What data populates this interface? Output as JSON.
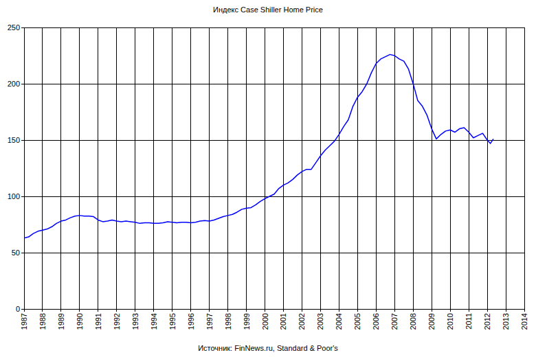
{
  "chart_data": {
    "type": "line",
    "title": "Индекс Case Shiller Home Price",
    "source": "Источник: FinNews.ru, Standard & Poor's",
    "x": [
      1987.0,
      1987.25,
      1987.5,
      1987.75,
      1988.0,
      1988.25,
      1988.5,
      1988.75,
      1989.0,
      1989.25,
      1989.5,
      1989.75,
      1990.0,
      1990.25,
      1990.5,
      1990.75,
      1991.0,
      1991.25,
      1991.5,
      1991.75,
      1992.0,
      1992.25,
      1992.5,
      1992.75,
      1993.0,
      1993.25,
      1993.5,
      1993.75,
      1994.0,
      1994.25,
      1994.5,
      1994.75,
      1995.0,
      1995.25,
      1995.5,
      1995.75,
      1996.0,
      1996.25,
      1996.5,
      1996.75,
      1997.0,
      1997.25,
      1997.5,
      1997.75,
      1998.0,
      1998.25,
      1998.5,
      1998.75,
      1999.0,
      1999.25,
      1999.5,
      1999.75,
      2000.0,
      2000.25,
      2000.5,
      2000.75,
      2001.0,
      2001.25,
      2001.5,
      2001.75,
      2002.0,
      2002.25,
      2002.5,
      2002.75,
      2003.0,
      2003.25,
      2003.5,
      2003.75,
      2004.0,
      2004.25,
      2004.5,
      2004.75,
      2005.0,
      2005.25,
      2005.5,
      2005.75,
      2006.0,
      2006.25,
      2006.5,
      2006.75,
      2007.0,
      2007.25,
      2007.5,
      2007.75,
      2008.0,
      2008.25,
      2008.5,
      2008.75,
      2009.0,
      2009.25,
      2009.5,
      2009.75,
      2010.0,
      2010.25,
      2010.5,
      2010.75,
      2011.0,
      2011.25,
      2011.5,
      2011.75,
      2012.0,
      2012.17,
      2012.33
    ],
    "values": [
      63,
      64,
      67,
      69,
      70,
      71,
      73,
      76,
      78,
      79,
      81,
      82.5,
      83,
      82.5,
      82.5,
      82,
      79,
      77.5,
      78,
      79,
      78,
      77.5,
      78,
      77.5,
      77,
      76,
      76.5,
      76.5,
      76,
      76,
      76.5,
      77.5,
      77,
      76.5,
      77,
      77,
      76.5,
      77,
      78,
      78.5,
      78,
      79,
      80.5,
      82,
      83,
      84,
      86,
      88.5,
      89.5,
      90,
      92.5,
      95.5,
      98,
      100,
      102,
      107,
      110,
      112,
      115,
      119,
      122,
      124,
      124,
      130,
      136,
      141,
      145,
      149,
      155,
      162,
      168,
      180,
      188,
      193,
      200,
      210,
      218,
      222,
      224,
      226,
      225,
      222,
      220,
      213,
      200,
      185,
      180,
      172,
      160,
      151,
      155,
      158,
      159,
      157,
      160,
      161,
      157,
      152,
      154,
      156,
      150,
      147,
      151
    ],
    "color": "#0000ff",
    "xlim": [
      1987,
      2014
    ],
    "xticks": [
      1987,
      1988,
      1989,
      1990,
      1991,
      1992,
      1993,
      1994,
      1995,
      1996,
      1997,
      1998,
      1999,
      2000,
      2001,
      2002,
      2003,
      2004,
      2005,
      2006,
      2007,
      2008,
      2009,
      2010,
      2011,
      2012,
      2013,
      2014
    ],
    "ylim": [
      0,
      250
    ],
    "yticks": [
      0,
      50,
      100,
      150,
      200,
      250
    ],
    "grid": true
  }
}
